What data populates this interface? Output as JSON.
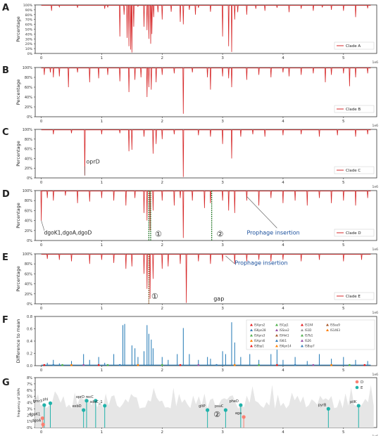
{
  "chart_data": [
    {
      "panel": "A",
      "type": "line",
      "ylabel": "Percentage",
      "yticks": [
        "0%",
        "10%",
        "20%",
        "30%",
        "40%",
        "50%",
        "60%",
        "70%",
        "80%",
        "90%",
        "100%"
      ],
      "xticks": [
        "0",
        "1",
        "2",
        "3",
        "4",
        "5"
      ],
      "x_offset_label": "1e6",
      "xlim": [
        -0.1,
        5.55
      ],
      "ylim": [
        0,
        100
      ],
      "baseline": 99,
      "legend": "Clade A",
      "color": "#d62728",
      "dips": [
        [
          0.17,
          88
        ],
        [
          0.3,
          96
        ],
        [
          0.6,
          94
        ],
        [
          1.05,
          92
        ],
        [
          1.1,
          95
        ],
        [
          1.3,
          35
        ],
        [
          1.37,
          80
        ],
        [
          1.42,
          32
        ],
        [
          1.45,
          15
        ],
        [
          1.48,
          8
        ],
        [
          1.5,
          2
        ],
        [
          1.53,
          55
        ],
        [
          1.6,
          97
        ],
        [
          1.7,
          55
        ],
        [
          1.75,
          48
        ],
        [
          1.78,
          30
        ],
        [
          1.81,
          20
        ],
        [
          1.83,
          40
        ],
        [
          1.86,
          75
        ],
        [
          1.93,
          85
        ],
        [
          2.0,
          70
        ],
        [
          2.15,
          86
        ],
        [
          2.3,
          65
        ],
        [
          2.35,
          60
        ],
        [
          2.45,
          90
        ],
        [
          2.55,
          80
        ],
        [
          2.6,
          94
        ],
        [
          2.8,
          86
        ],
        [
          3.0,
          35
        ],
        [
          3.1,
          15
        ],
        [
          3.15,
          3
        ],
        [
          3.2,
          70
        ],
        [
          3.25,
          85
        ],
        [
          3.4,
          80
        ],
        [
          3.55,
          92
        ],
        [
          3.7,
          88
        ],
        [
          3.9,
          94
        ],
        [
          4.1,
          85
        ],
        [
          4.3,
          92
        ],
        [
          4.5,
          88
        ],
        [
          4.65,
          95
        ],
        [
          4.8,
          90
        ],
        [
          5.0,
          88
        ],
        [
          5.2,
          75
        ],
        [
          5.4,
          93
        ]
      ]
    },
    {
      "panel": "B",
      "type": "line",
      "ylabel": "Percentage",
      "yticks": [
        "0%",
        "20%",
        "40%",
        "60%",
        "80%",
        "100%"
      ],
      "xticks": [
        "0",
        "1",
        "2",
        "3",
        "4",
        "5"
      ],
      "x_offset_label": "1e6",
      "xlim": [
        -0.1,
        5.55
      ],
      "ylim": [
        0,
        100
      ],
      "baseline": 99,
      "legend": "Clade B",
      "color": "#d62728",
      "dips": [
        [
          0.05,
          85
        ],
        [
          0.15,
          90
        ],
        [
          0.2,
          80
        ],
        [
          0.3,
          82
        ],
        [
          0.45,
          60
        ],
        [
          0.6,
          90
        ],
        [
          0.8,
          70
        ],
        [
          0.95,
          78
        ],
        [
          1.1,
          85
        ],
        [
          1.3,
          72
        ],
        [
          1.45,
          50
        ],
        [
          1.55,
          75
        ],
        [
          1.65,
          80
        ],
        [
          1.75,
          40
        ],
        [
          1.78,
          60
        ],
        [
          1.82,
          55
        ],
        [
          1.9,
          70
        ],
        [
          2.0,
          85
        ],
        [
          2.2,
          88
        ],
        [
          2.35,
          6
        ],
        [
          2.5,
          90
        ],
        [
          2.75,
          80
        ],
        [
          2.8,
          55
        ],
        [
          3.0,
          82
        ],
        [
          3.1,
          78
        ],
        [
          3.15,
          60
        ],
        [
          3.4,
          75
        ],
        [
          3.6,
          85
        ],
        [
          3.8,
          80
        ],
        [
          4.0,
          90
        ],
        [
          4.1,
          82
        ],
        [
          4.3,
          85
        ],
        [
          4.5,
          88
        ],
        [
          4.7,
          70
        ],
        [
          4.8,
          85
        ],
        [
          5.0,
          88
        ],
        [
          5.1,
          62
        ],
        [
          5.2,
          80
        ],
        [
          5.4,
          88
        ]
      ]
    },
    {
      "panel": "C",
      "type": "line",
      "ylabel": "Percentage",
      "yticks": [
        "0%",
        "20%",
        "40%",
        "60%",
        "80%",
        "100%"
      ],
      "xticks": [
        "0",
        "1",
        "2",
        "3",
        "4",
        "5"
      ],
      "x_offset_label": "1e6",
      "xlim": [
        -0.1,
        5.55
      ],
      "ylim": [
        0,
        100
      ],
      "baseline": 99,
      "legend": "Clade C",
      "color": "#d62728",
      "annotation": "oprD",
      "dips": [
        [
          0.2,
          90
        ],
        [
          0.5,
          92
        ],
        [
          0.72,
          5
        ],
        [
          1.0,
          90
        ],
        [
          1.3,
          92
        ],
        [
          1.45,
          55
        ],
        [
          1.5,
          58
        ],
        [
          1.7,
          85
        ],
        [
          1.85,
          50
        ],
        [
          1.9,
          70
        ],
        [
          2.0,
          80
        ],
        [
          2.2,
          90
        ],
        [
          2.35,
          2
        ],
        [
          2.6,
          88
        ],
        [
          2.8,
          85
        ],
        [
          3.0,
          70
        ],
        [
          3.15,
          40
        ],
        [
          3.3,
          85
        ],
        [
          3.5,
          90
        ],
        [
          3.7,
          85
        ],
        [
          4.0,
          88
        ],
        [
          4.3,
          90
        ],
        [
          4.6,
          85
        ],
        [
          4.9,
          88
        ],
        [
          5.2,
          85
        ],
        [
          5.4,
          90
        ]
      ]
    },
    {
      "panel": "D",
      "type": "line",
      "ylabel": "Percentage",
      "yticks": [
        "0%",
        "20%",
        "40%",
        "60%",
        "80%",
        "100%"
      ],
      "xticks": [
        "0",
        "1",
        "2",
        "3",
        "4",
        "5"
      ],
      "x_offset_label": "1e6",
      "xlim": [
        -0.1,
        5.55
      ],
      "ylim": [
        0,
        100
      ],
      "baseline": 99,
      "legend": "Clade D",
      "color": "#d62728",
      "annotations": [
        "dgoK1,dgoA,dgoD",
        "①",
        "②",
        "Prophage insertion"
      ],
      "dips": [
        [
          0.0,
          40
        ],
        [
          0.1,
          85
        ],
        [
          0.2,
          80
        ],
        [
          0.4,
          90
        ],
        [
          0.6,
          75
        ],
        [
          0.8,
          78
        ],
        [
          1.0,
          85
        ],
        [
          1.2,
          80
        ],
        [
          1.4,
          70
        ],
        [
          1.55,
          85
        ],
        [
          1.7,
          55
        ],
        [
          1.75,
          40
        ],
        [
          1.8,
          20
        ],
        [
          1.85,
          60
        ],
        [
          2.0,
          80
        ],
        [
          2.2,
          70
        ],
        [
          2.3,
          85
        ],
        [
          2.35,
          5
        ],
        [
          2.5,
          80
        ],
        [
          2.7,
          65
        ],
        [
          2.8,
          75
        ],
        [
          3.0,
          80
        ],
        [
          3.1,
          60
        ],
        [
          3.2,
          55
        ],
        [
          3.4,
          80
        ],
        [
          3.6,
          70
        ],
        [
          3.8,
          85
        ],
        [
          4.0,
          75
        ],
        [
          4.2,
          80
        ],
        [
          4.4,
          70
        ],
        [
          4.6,
          85
        ],
        [
          4.8,
          75
        ],
        [
          5.0,
          80
        ],
        [
          5.2,
          70
        ],
        [
          5.4,
          85
        ]
      ]
    },
    {
      "panel": "E",
      "type": "line",
      "ylabel": "Percentage",
      "yticks": [
        "0%",
        "20%",
        "40%",
        "60%",
        "80%",
        "100%"
      ],
      "xticks": [
        "0",
        "1",
        "2",
        "3",
        "4",
        "5"
      ],
      "x_offset_label": "1e6",
      "xlim": [
        -0.1,
        5.55
      ],
      "ylim": [
        0,
        100
      ],
      "baseline": 99,
      "legend": "Clade E",
      "color": "#d62728",
      "annotations": [
        "①",
        "gap",
        "Prophage insertion"
      ],
      "dips": [
        [
          0.1,
          90
        ],
        [
          0.3,
          88
        ],
        [
          0.5,
          85
        ],
        [
          0.8,
          80
        ],
        [
          1.0,
          88
        ],
        [
          1.2,
          82
        ],
        [
          1.4,
          70
        ],
        [
          1.5,
          75
        ],
        [
          1.7,
          60
        ],
        [
          1.75,
          30
        ],
        [
          1.8,
          10
        ],
        [
          1.85,
          50
        ],
        [
          2.0,
          70
        ],
        [
          2.1,
          75
        ],
        [
          2.3,
          80
        ],
        [
          2.4,
          2
        ],
        [
          2.6,
          85
        ],
        [
          2.8,
          80
        ],
        [
          3.0,
          85
        ],
        [
          3.2,
          80
        ],
        [
          3.4,
          85
        ],
        [
          3.6,
          88
        ],
        [
          3.8,
          85
        ],
        [
          4.0,
          88
        ],
        [
          4.3,
          85
        ],
        [
          4.6,
          88
        ],
        [
          5.0,
          85
        ],
        [
          5.3,
          88
        ]
      ]
    },
    {
      "panel": "F",
      "type": "line",
      "ylabel": "Difference to mean",
      "yticks": [
        "0.0",
        "0.2",
        "0.4",
        "0.6",
        "0.8"
      ],
      "xticks": [
        "0",
        "1",
        "2",
        "3",
        "4",
        "5"
      ],
      "x_offset_label": "1e6",
      "xlim": [
        -0.1,
        5.55
      ],
      "ylim": [
        0,
        0.85
      ],
      "color": "#1f77b4",
      "spikes": [
        [
          0.1,
          0.05
        ],
        [
          0.2,
          0.1
        ],
        [
          0.3,
          0.04
        ],
        [
          0.5,
          0.08
        ],
        [
          0.7,
          0.2
        ],
        [
          0.8,
          0.1
        ],
        [
          0.95,
          0.15
        ],
        [
          1.05,
          0.05
        ],
        [
          1.2,
          0.2
        ],
        [
          1.35,
          0.7
        ],
        [
          1.38,
          0.72
        ],
        [
          1.5,
          0.35
        ],
        [
          1.55,
          0.3
        ],
        [
          1.6,
          0.15
        ],
        [
          1.7,
          0.25
        ],
        [
          1.75,
          0.7
        ],
        [
          1.78,
          0.55
        ],
        [
          1.82,
          0.45
        ],
        [
          1.85,
          0.3
        ],
        [
          2.0,
          0.15
        ],
        [
          2.1,
          0.1
        ],
        [
          2.25,
          0.2
        ],
        [
          2.35,
          0.65
        ],
        [
          2.45,
          0.2
        ],
        [
          2.6,
          0.1
        ],
        [
          2.75,
          0.15
        ],
        [
          2.8,
          0.12
        ],
        [
          3.0,
          0.25
        ],
        [
          3.05,
          0.2
        ],
        [
          3.15,
          0.75
        ],
        [
          3.2,
          0.4
        ],
        [
          3.3,
          0.15
        ],
        [
          3.45,
          0.2
        ],
        [
          3.6,
          0.1
        ],
        [
          3.8,
          0.2
        ],
        [
          3.9,
          0.3
        ],
        [
          4.0,
          0.1
        ],
        [
          4.2,
          0.15
        ],
        [
          4.4,
          0.08
        ],
        [
          4.6,
          0.2
        ],
        [
          4.8,
          0.12
        ],
        [
          5.0,
          0.15
        ],
        [
          5.2,
          0.1
        ],
        [
          5.4,
          0.08
        ]
      ],
      "legend_entries": [
        "ISAprs2",
        "ISKpn28",
        "ISAprs3",
        "ISAprs6",
        "ISEbp1",
        "ISCpj1",
        "ISSav2",
        "ISHnt1",
        "ISKi1",
        "ISKpn14",
        "IS1X4",
        "IS1D",
        "IS7b1",
        "IS26",
        "ISBsp7",
        "ISSau9",
        "IS1463"
      ],
      "legend_colors": [
        "#e41a1c",
        "#377eb8",
        "#4daf4a",
        "#ff7f00",
        "#e41a1c",
        "#4daf4a",
        "#984ea3",
        "#a65628",
        "#377eb8",
        "#ff7f00",
        "#e41a1c",
        "#999999",
        "#4daf4a",
        "#984ea3",
        "#377eb8",
        "#a65628",
        "#ff7f00"
      ],
      "markers": [
        [
          0.05,
          "#e41a1c"
        ],
        [
          0.2,
          "#377eb8"
        ],
        [
          0.35,
          "#4daf4a"
        ],
        [
          0.5,
          "#ff7f00"
        ],
        [
          0.7,
          "#984ea3"
        ],
        [
          0.95,
          "#e41a1c"
        ],
        [
          1.1,
          "#4daf4a"
        ],
        [
          1.3,
          "#377eb8"
        ],
        [
          1.6,
          "#ff7f00"
        ],
        [
          2.0,
          "#4daf4a"
        ],
        [
          2.3,
          "#e41a1c"
        ],
        [
          2.6,
          "#984ea3"
        ],
        [
          2.9,
          "#377eb8"
        ],
        [
          3.2,
          "#ff7f00"
        ],
        [
          3.6,
          "#4daf4a"
        ],
        [
          3.9,
          "#e41a1c"
        ],
        [
          4.2,
          "#377eb8"
        ],
        [
          4.5,
          "#984ea3"
        ],
        [
          4.8,
          "#ff7f00"
        ],
        [
          5.1,
          "#4daf4a"
        ],
        [
          5.35,
          "#e41a1c"
        ]
      ]
    },
    {
      "panel": "G",
      "type": "scatter",
      "ylabel": "Frequency of SNPs",
      "yticks": [
        "0%",
        "1%",
        "2%",
        "3%",
        "4%",
        "5%",
        "6%",
        "7%",
        "8%"
      ],
      "xticks": [
        "0",
        "1",
        "2",
        "3",
        "4",
        "5"
      ],
      "x_offset_label": "1e6",
      "xlim": [
        -0.1,
        5.55
      ],
      "ylim": [
        0,
        8
      ],
      "legend": [
        {
          "name": "D",
          "color": "#fa8072"
        },
        {
          "name": "E",
          "color": "#20b2aa"
        }
      ],
      "annotation": "②",
      "points": [
        {
          "label": "bmr3",
          "x": 0.05,
          "y": 3.6,
          "group": "E"
        },
        {
          "label": "phl",
          "x": 0.15,
          "y": 3.9,
          "group": "E"
        },
        {
          "label": "dgoK1",
          "x": 0.02,
          "y": 1.5,
          "group": "D"
        },
        {
          "label": "dgoA",
          "x": 0.03,
          "y": 0.5,
          "group": "D"
        },
        {
          "label": "oprD",
          "x": 0.75,
          "y": 4.3,
          "group": "E"
        },
        {
          "label": "exbD",
          "x": 0.7,
          "y": 2.8,
          "group": "E"
        },
        {
          "label": "recC",
          "x": 0.9,
          "y": 4.3,
          "group": "E"
        },
        {
          "label": "sdoC_1",
          "x": 1.05,
          "y": 3.5,
          "group": "E"
        },
        {
          "label": "gltP",
          "x": 2.75,
          "y": 2.8,
          "group": "E"
        },
        {
          "label": "psuC",
          "x": 3.05,
          "y": 2.8,
          "group": "E"
        },
        {
          "label": "pheD",
          "x": 3.3,
          "y": 3.6,
          "group": "E"
        },
        {
          "label": "aga",
          "x": 3.35,
          "y": 1.7,
          "group": "D"
        },
        {
          "label": "pyrB",
          "x": 4.75,
          "y": 3.0,
          "group": "E"
        },
        {
          "label": "pilK",
          "x": 5.25,
          "y": 3.5,
          "group": "E"
        }
      ]
    }
  ]
}
